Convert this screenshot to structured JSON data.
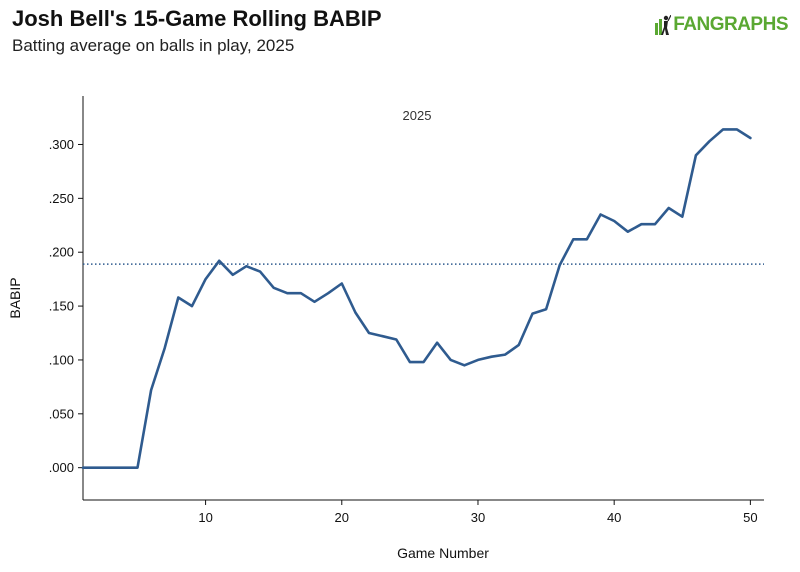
{
  "header": {
    "title": "Josh Bell's 15-Game Rolling BABIP",
    "subtitle": "Batting average on balls in play, 2025",
    "logo_text": "FANGRAPHS",
    "logo_icon": "fangraphs-batter-icon",
    "logo_color": "#5aa832"
  },
  "chart_data": {
    "type": "line",
    "title": "Josh Bell's 15-Game Rolling BABIP",
    "subtitle": "Batting average on balls in play, 2025",
    "xlabel": "Game Number",
    "ylabel": "BABIP",
    "xlim": [
      1,
      51
    ],
    "ylim": [
      -0.03,
      0.345
    ],
    "x_ticks": [
      10,
      20,
      30,
      40,
      50
    ],
    "x_tick_labels": [
      "10",
      "20",
      "30",
      "40",
      "50"
    ],
    "y_ticks": [
      0,
      0.05,
      0.1,
      0.15,
      0.2,
      0.25,
      0.3
    ],
    "y_tick_labels": [
      ".000",
      ".050",
      ".100",
      ".150",
      ".200",
      ".250",
      ".300"
    ],
    "annotation": "2025",
    "reference_line": {
      "y": 0.189,
      "style": "dotted"
    },
    "grid": false,
    "line_color": "#2f5b8f",
    "series": [
      {
        "x": [
          1,
          2,
          3,
          4,
          5,
          6,
          7,
          8,
          9,
          10,
          11,
          12,
          13,
          14,
          15,
          16,
          17,
          18,
          19,
          20,
          21,
          22,
          23,
          24,
          25,
          26,
          27,
          28,
          29,
          30,
          31,
          32,
          33,
          34,
          35,
          36,
          37,
          38,
          39,
          40,
          41,
          42,
          43,
          44,
          45,
          46,
          47,
          48,
          49,
          50
        ],
        "values": [
          0.0,
          0.0,
          0.0,
          0.0,
          0.0,
          0.072,
          0.111,
          0.158,
          0.15,
          0.175,
          0.192,
          0.179,
          0.187,
          0.182,
          0.167,
          0.162,
          0.162,
          0.154,
          0.162,
          0.171,
          0.144,
          0.125,
          0.122,
          0.119,
          0.098,
          0.098,
          0.116,
          0.1,
          0.095,
          0.1,
          0.103,
          0.105,
          0.114,
          0.143,
          0.147,
          0.188,
          0.212,
          0.212,
          0.235,
          0.229,
          0.219,
          0.226,
          0.226,
          0.241,
          0.233,
          0.29,
          0.303,
          0.314,
          0.314,
          0.306
        ]
      }
    ]
  }
}
